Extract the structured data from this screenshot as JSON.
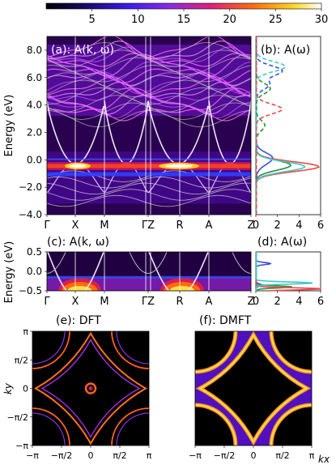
{
  "colorbar": {
    "ticks": [
      "5",
      "10",
      "15",
      "20",
      "25",
      "30"
    ],
    "tick_values": [
      5,
      10,
      15,
      20,
      25,
      30
    ],
    "range": [
      0,
      30
    ],
    "colormap": "gnuplot2-like: black to blue/purple to red/orange to yellow/white"
  },
  "panels": {
    "a": {
      "label": "(a): A(k, ω)"
    },
    "b": {
      "label": "(b): A(ω)"
    },
    "c": {
      "label": "(c): A(k, ω)"
    },
    "d": {
      "label": "(d): A(ω)"
    },
    "e": {
      "label": "(e): DFT"
    },
    "f": {
      "label": "(f): DMFT"
    }
  },
  "axes": {
    "energy_label": "Energy (eV)",
    "kpath_labels": [
      "Γ",
      "X",
      "M",
      "ΓZ",
      "R",
      "A",
      "Z"
    ],
    "a_yticks": [
      "8.0",
      "6.0",
      "4.0",
      "2.0",
      "0.0",
      "−2.0",
      "−4.0"
    ],
    "c_yticks": [
      "0.5",
      "0.0",
      "−0.5"
    ],
    "dos_xticks": [
      "0",
      "2",
      "4",
      "6"
    ],
    "ky_label": "ky",
    "kx_label": "kx",
    "pi_ticks": [
      "−π",
      "−π/2",
      "0",
      "π/2",
      "π"
    ]
  },
  "chart_data": [
    {
      "type": "heatmap",
      "panel": "a",
      "description_of_axes": "k-path vs energy",
      "x_categories": [
        "Γ",
        "X",
        "M",
        "Γ",
        "Z",
        "R",
        "A",
        "Z"
      ],
      "ylim": [
        -4.0,
        9.0
      ],
      "ylabel": "Energy (eV)",
      "color_range": [
        0,
        30
      ],
      "overlay": "DFT bands (grey lines)"
    },
    {
      "type": "line",
      "panel": "b",
      "xlim": [
        0,
        6
      ],
      "ylim": [
        -4.0,
        9.0
      ],
      "series": [
        {
          "color": "#3b53d6",
          "style": "solid",
          "peaks": [
            {
              "E": 0.2,
              "A": 1.3
            },
            {
              "E": -0.3,
              "A": 0.5
            }
          ]
        },
        {
          "color": "#2e8b3a",
          "style": "solid",
          "peaks": [
            {
              "E": -0.4,
              "A": 3.2
            }
          ]
        },
        {
          "color": "#e64b4b",
          "style": "solid",
          "peaks": [
            {
              "E": -0.5,
              "A": 5.8
            }
          ]
        },
        {
          "color": "#40c8c8",
          "style": "solid",
          "peaks": [
            {
              "E": -0.5,
              "A": 4.5
            }
          ]
        },
        {
          "color": "#3b53d6",
          "style": "dashed",
          "peaks": [
            {
              "E": 6.5,
              "A": 2.4
            },
            {
              "E": 5.5,
              "A": 1.2
            }
          ]
        },
        {
          "color": "#40c8c8",
          "style": "dashed",
          "peaks": [
            {
              "E": 6.8,
              "A": 2.7
            }
          ]
        },
        {
          "color": "#2e8b3a",
          "style": "dashed",
          "peaks": [
            {
              "E": 5.2,
              "A": 1.3
            },
            {
              "E": 2.5,
              "A": 0.8
            }
          ]
        },
        {
          "color": "#e64b4b",
          "style": "dashed",
          "peaks": [
            {
              "E": 3.7,
              "A": 2.4
            }
          ]
        }
      ]
    },
    {
      "type": "heatmap",
      "panel": "c",
      "x_categories": [
        "Γ",
        "X",
        "M",
        "Γ",
        "Z",
        "R",
        "A",
        "Z"
      ],
      "ylim": [
        -0.5,
        0.5
      ],
      "ylabel": "Energy (eV)",
      "color_range": [
        0,
        30
      ]
    },
    {
      "type": "line",
      "panel": "d",
      "xlim": [
        0,
        6
      ],
      "ylim": [
        -0.5,
        0.5
      ],
      "series": [
        {
          "color": "#3b53d6",
          "peaks": [
            {
              "E": 0.2,
              "A": 1.3
            },
            {
              "E": -0.35,
              "A": 0.5
            }
          ]
        },
        {
          "color": "#2e8b3a",
          "peaks": [
            {
              "E": -0.4,
              "A": 3.3
            }
          ]
        },
        {
          "color": "#e64b4b",
          "peaks": [
            {
              "E": -0.45,
              "A": 6.0
            }
          ]
        },
        {
          "color": "#40c8c8",
          "peaks": [
            {
              "E": -0.3,
              "A": 5.2
            }
          ]
        }
      ]
    },
    {
      "type": "heatmap",
      "panel": "e",
      "xlabel": "",
      "ylabel": "ky",
      "xlim": [
        -3.1416,
        3.1416
      ],
      "ylim": [
        -3.1416,
        3.1416
      ]
    },
    {
      "type": "heatmap",
      "panel": "f",
      "xlabel": "kx",
      "ylabel": "",
      "xlim": [
        -3.1416,
        3.1416
      ],
      "ylim": [
        -3.1416,
        3.1416
      ]
    }
  ]
}
